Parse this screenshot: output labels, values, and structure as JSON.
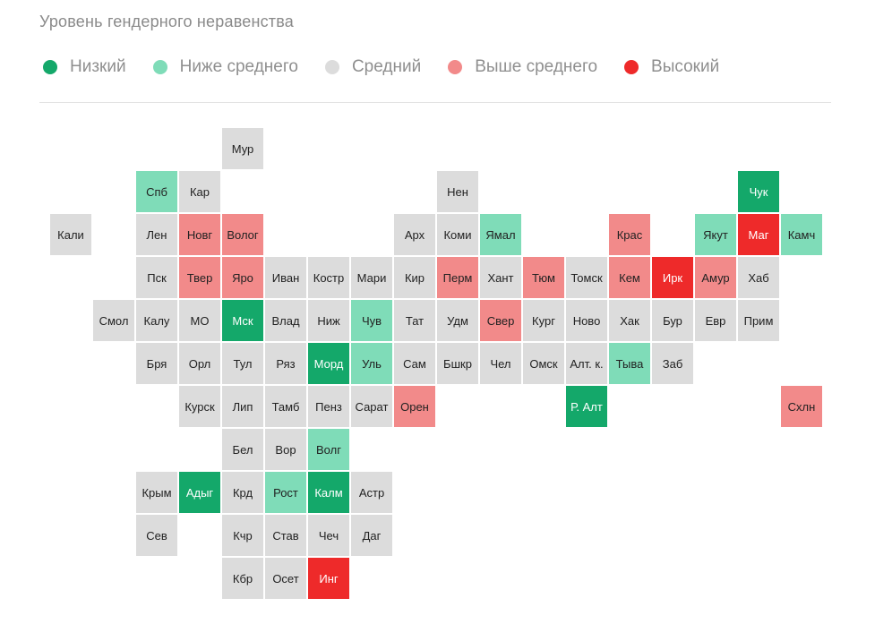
{
  "title": "Уровень гендерного неравенства",
  "legend": [
    {
      "key": "low",
      "label": "Низкий",
      "color": "#14a86a"
    },
    {
      "key": "below",
      "label": "Ниже среднего",
      "color": "#7fdcb8"
    },
    {
      "key": "mid",
      "label": "Средний",
      "color": "#dcdcdc"
    },
    {
      "key": "above",
      "label": "Выше среднего",
      "color": "#f28a8a"
    },
    {
      "key": "high",
      "label": "Высокий",
      "color": "#ee2a2a"
    }
  ],
  "chart_data": {
    "type": "heatmap",
    "title": "Уровень гендерного неравенства",
    "categories": [
      "Низкий",
      "Ниже среднего",
      "Средний",
      "Выше среднего",
      "Высокий"
    ],
    "grid": {
      "columns": 18,
      "rows": 11
    },
    "regions": [
      {
        "label": "Мур",
        "col": 5,
        "row": 0,
        "level": "mid"
      },
      {
        "label": "Спб",
        "col": 3,
        "row": 1,
        "level": "below"
      },
      {
        "label": "Кар",
        "col": 4,
        "row": 1,
        "level": "mid"
      },
      {
        "label": "Нен",
        "col": 10,
        "row": 1,
        "level": "mid"
      },
      {
        "label": "Чук",
        "col": 17,
        "row": 1,
        "level": "low"
      },
      {
        "label": "Кали",
        "col": 1,
        "row": 2,
        "level": "mid"
      },
      {
        "label": "Лен",
        "col": 3,
        "row": 2,
        "level": "mid"
      },
      {
        "label": "Новг",
        "col": 4,
        "row": 2,
        "level": "above"
      },
      {
        "label": "Волог",
        "col": 5,
        "row": 2,
        "level": "above"
      },
      {
        "label": "Арх",
        "col": 9,
        "row": 2,
        "level": "mid"
      },
      {
        "label": "Коми",
        "col": 10,
        "row": 2,
        "level": "mid"
      },
      {
        "label": "Ямал",
        "col": 11,
        "row": 2,
        "level": "below"
      },
      {
        "label": "Крас",
        "col": 14,
        "row": 2,
        "level": "above"
      },
      {
        "label": "Якут",
        "col": 16,
        "row": 2,
        "level": "below"
      },
      {
        "label": "Маг",
        "col": 17,
        "row": 2,
        "level": "high"
      },
      {
        "label": "Камч",
        "col": 18,
        "row": 2,
        "level": "below"
      },
      {
        "label": "Пск",
        "col": 3,
        "row": 3,
        "level": "mid"
      },
      {
        "label": "Твер",
        "col": 4,
        "row": 3,
        "level": "above"
      },
      {
        "label": "Яро",
        "col": 5,
        "row": 3,
        "level": "above"
      },
      {
        "label": "Иван",
        "col": 6,
        "row": 3,
        "level": "mid"
      },
      {
        "label": "Костр",
        "col": 7,
        "row": 3,
        "level": "mid"
      },
      {
        "label": "Мари",
        "col": 8,
        "row": 3,
        "level": "mid"
      },
      {
        "label": "Кир",
        "col": 9,
        "row": 3,
        "level": "mid"
      },
      {
        "label": "Перм",
        "col": 10,
        "row": 3,
        "level": "above"
      },
      {
        "label": "Хант",
        "col": 11,
        "row": 3,
        "level": "mid"
      },
      {
        "label": "Тюм",
        "col": 12,
        "row": 3,
        "level": "above"
      },
      {
        "label": "Томск",
        "col": 13,
        "row": 3,
        "level": "mid"
      },
      {
        "label": "Кем",
        "col": 14,
        "row": 3,
        "level": "above"
      },
      {
        "label": "Ирк",
        "col": 15,
        "row": 3,
        "level": "high"
      },
      {
        "label": "Амур",
        "col": 16,
        "row": 3,
        "level": "above"
      },
      {
        "label": "Хаб",
        "col": 17,
        "row": 3,
        "level": "mid"
      },
      {
        "label": "Смол",
        "col": 2,
        "row": 4,
        "level": "mid"
      },
      {
        "label": "Калу",
        "col": 3,
        "row": 4,
        "level": "mid"
      },
      {
        "label": "МО",
        "col": 4,
        "row": 4,
        "level": "mid"
      },
      {
        "label": "Мск",
        "col": 5,
        "row": 4,
        "level": "low"
      },
      {
        "label": "Влад",
        "col": 6,
        "row": 4,
        "level": "mid"
      },
      {
        "label": "Ниж",
        "col": 7,
        "row": 4,
        "level": "mid"
      },
      {
        "label": "Чув",
        "col": 8,
        "row": 4,
        "level": "below"
      },
      {
        "label": "Тат",
        "col": 9,
        "row": 4,
        "level": "mid"
      },
      {
        "label": "Удм",
        "col": 10,
        "row": 4,
        "level": "mid"
      },
      {
        "label": "Свер",
        "col": 11,
        "row": 4,
        "level": "above"
      },
      {
        "label": "Кург",
        "col": 12,
        "row": 4,
        "level": "mid"
      },
      {
        "label": "Ново",
        "col": 13,
        "row": 4,
        "level": "mid"
      },
      {
        "label": "Хак",
        "col": 14,
        "row": 4,
        "level": "mid"
      },
      {
        "label": "Бур",
        "col": 15,
        "row": 4,
        "level": "mid"
      },
      {
        "label": "Евр",
        "col": 16,
        "row": 4,
        "level": "mid"
      },
      {
        "label": "Прим",
        "col": 17,
        "row": 4,
        "level": "mid"
      },
      {
        "label": "Бря",
        "col": 3,
        "row": 5,
        "level": "mid"
      },
      {
        "label": "Орл",
        "col": 4,
        "row": 5,
        "level": "mid"
      },
      {
        "label": "Тул",
        "col": 5,
        "row": 5,
        "level": "mid"
      },
      {
        "label": "Ряз",
        "col": 6,
        "row": 5,
        "level": "mid"
      },
      {
        "label": "Морд",
        "col": 7,
        "row": 5,
        "level": "low"
      },
      {
        "label": "Уль",
        "col": 8,
        "row": 5,
        "level": "below"
      },
      {
        "label": "Сам",
        "col": 9,
        "row": 5,
        "level": "mid"
      },
      {
        "label": "Бшкр",
        "col": 10,
        "row": 5,
        "level": "mid"
      },
      {
        "label": "Чел",
        "col": 11,
        "row": 5,
        "level": "mid"
      },
      {
        "label": "Омск",
        "col": 12,
        "row": 5,
        "level": "mid"
      },
      {
        "label": "Алт. к.",
        "col": 13,
        "row": 5,
        "level": "mid"
      },
      {
        "label": "Тыва",
        "col": 14,
        "row": 5,
        "level": "below"
      },
      {
        "label": "Заб",
        "col": 15,
        "row": 5,
        "level": "mid"
      },
      {
        "label": "Курск",
        "col": 4,
        "row": 6,
        "level": "mid"
      },
      {
        "label": "Лип",
        "col": 5,
        "row": 6,
        "level": "mid"
      },
      {
        "label": "Тамб",
        "col": 6,
        "row": 6,
        "level": "mid"
      },
      {
        "label": "Пенз",
        "col": 7,
        "row": 6,
        "level": "mid"
      },
      {
        "label": "Сарат",
        "col": 8,
        "row": 6,
        "level": "mid"
      },
      {
        "label": "Орен",
        "col": 9,
        "row": 6,
        "level": "above"
      },
      {
        "label": "Р. Алт",
        "col": 13,
        "row": 6,
        "level": "low"
      },
      {
        "label": "Схлн",
        "col": 18,
        "row": 6,
        "level": "above"
      },
      {
        "label": "Бел",
        "col": 5,
        "row": 7,
        "level": "mid"
      },
      {
        "label": "Вор",
        "col": 6,
        "row": 7,
        "level": "mid"
      },
      {
        "label": "Волг",
        "col": 7,
        "row": 7,
        "level": "below"
      },
      {
        "label": "Крым",
        "col": 3,
        "row": 8,
        "level": "mid"
      },
      {
        "label": "Адыг",
        "col": 4,
        "row": 8,
        "level": "low"
      },
      {
        "label": "Крд",
        "col": 5,
        "row": 8,
        "level": "mid"
      },
      {
        "label": "Рост",
        "col": 6,
        "row": 8,
        "level": "below"
      },
      {
        "label": "Калм",
        "col": 7,
        "row": 8,
        "level": "low"
      },
      {
        "label": "Астр",
        "col": 8,
        "row": 8,
        "level": "mid"
      },
      {
        "label": "Сев",
        "col": 3,
        "row": 9,
        "level": "mid"
      },
      {
        "label": "Кчр",
        "col": 5,
        "row": 9,
        "level": "mid"
      },
      {
        "label": "Став",
        "col": 6,
        "row": 9,
        "level": "mid"
      },
      {
        "label": "Чеч",
        "col": 7,
        "row": 9,
        "level": "mid"
      },
      {
        "label": "Даг",
        "col": 8,
        "row": 9,
        "level": "mid"
      },
      {
        "label": "Кбр",
        "col": 5,
        "row": 10,
        "level": "mid"
      },
      {
        "label": "Осет",
        "col": 6,
        "row": 10,
        "level": "mid"
      },
      {
        "label": "Инг",
        "col": 7,
        "row": 10,
        "level": "high"
      }
    ]
  }
}
